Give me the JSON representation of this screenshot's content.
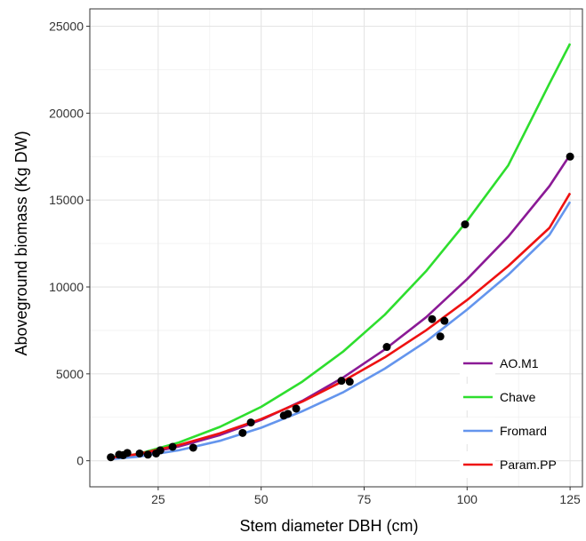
{
  "chart_data": {
    "type": "scatter",
    "xlabel": "Stem diameter DBH (cm)",
    "ylabel": "Aboveground biomass (Kg DW)",
    "xlim": [
      8.4,
      128.0
    ],
    "ylim": [
      -1500,
      26000
    ],
    "x_ticks": [
      25,
      50,
      75,
      100,
      125
    ],
    "y_ticks": [
      0,
      5000,
      10000,
      15000,
      20000,
      25000
    ],
    "grid": true,
    "legend_position": "bottom-right",
    "points": [
      {
        "x": 13.5,
        "y": 200
      },
      {
        "x": 15.5,
        "y": 350
      },
      {
        "x": 16.5,
        "y": 320
      },
      {
        "x": 17.5,
        "y": 450
      },
      {
        "x": 20.5,
        "y": 420
      },
      {
        "x": 22.5,
        "y": 350
      },
      {
        "x": 24.5,
        "y": 420
      },
      {
        "x": 25.5,
        "y": 600
      },
      {
        "x": 28.5,
        "y": 800
      },
      {
        "x": 33.5,
        "y": 750
      },
      {
        "x": 45.5,
        "y": 1600
      },
      {
        "x": 47.5,
        "y": 2200
      },
      {
        "x": 55.5,
        "y": 2600
      },
      {
        "x": 56.5,
        "y": 2700
      },
      {
        "x": 58.5,
        "y": 3000
      },
      {
        "x": 69.5,
        "y": 4600
      },
      {
        "x": 71.5,
        "y": 4550
      },
      {
        "x": 80.5,
        "y": 6550
      },
      {
        "x": 91.5,
        "y": 8150
      },
      {
        "x": 93.5,
        "y": 7150
      },
      {
        "x": 94.5,
        "y": 8050
      },
      {
        "x": 99.5,
        "y": 13600
      },
      {
        "x": 125.0,
        "y": 17500
      }
    ],
    "series": [
      {
        "name": "AO.M1",
        "color": "#8b1a96",
        "x": [
          13,
          20,
          30,
          40,
          50,
          60,
          70,
          80,
          90,
          100,
          110,
          120,
          125
        ],
        "y": [
          160,
          320,
          820,
          1480,
          2350,
          3450,
          4800,
          6400,
          8250,
          10450,
          12900,
          15800,
          17600
        ]
      },
      {
        "name": "Chave",
        "color": "#2ede2e",
        "x": [
          13,
          20,
          30,
          40,
          50,
          60,
          70,
          80,
          90,
          100,
          110,
          120,
          125
        ],
        "y": [
          180,
          380,
          1050,
          1950,
          3100,
          4550,
          6300,
          8400,
          10900,
          13800,
          17000,
          21700,
          24000
        ]
      },
      {
        "name": "Fromard",
        "color": "#6495ed",
        "x": [
          13,
          20,
          30,
          40,
          50,
          60,
          70,
          80,
          90,
          100,
          110,
          120,
          125
        ],
        "y": [
          90,
          230,
          600,
          1150,
          1900,
          2850,
          3950,
          5300,
          6850,
          8700,
          10700,
          13000,
          14900
        ]
      },
      {
        "name": "Param.PP",
        "color": "#ee1111",
        "x": [
          13,
          20,
          30,
          40,
          50,
          60,
          70,
          80,
          90,
          100,
          110,
          120,
          125
        ],
        "y": [
          160,
          380,
          900,
          1580,
          2400,
          3400,
          4600,
          5950,
          7500,
          9250,
          11200,
          13400,
          15400
        ]
      }
    ]
  }
}
